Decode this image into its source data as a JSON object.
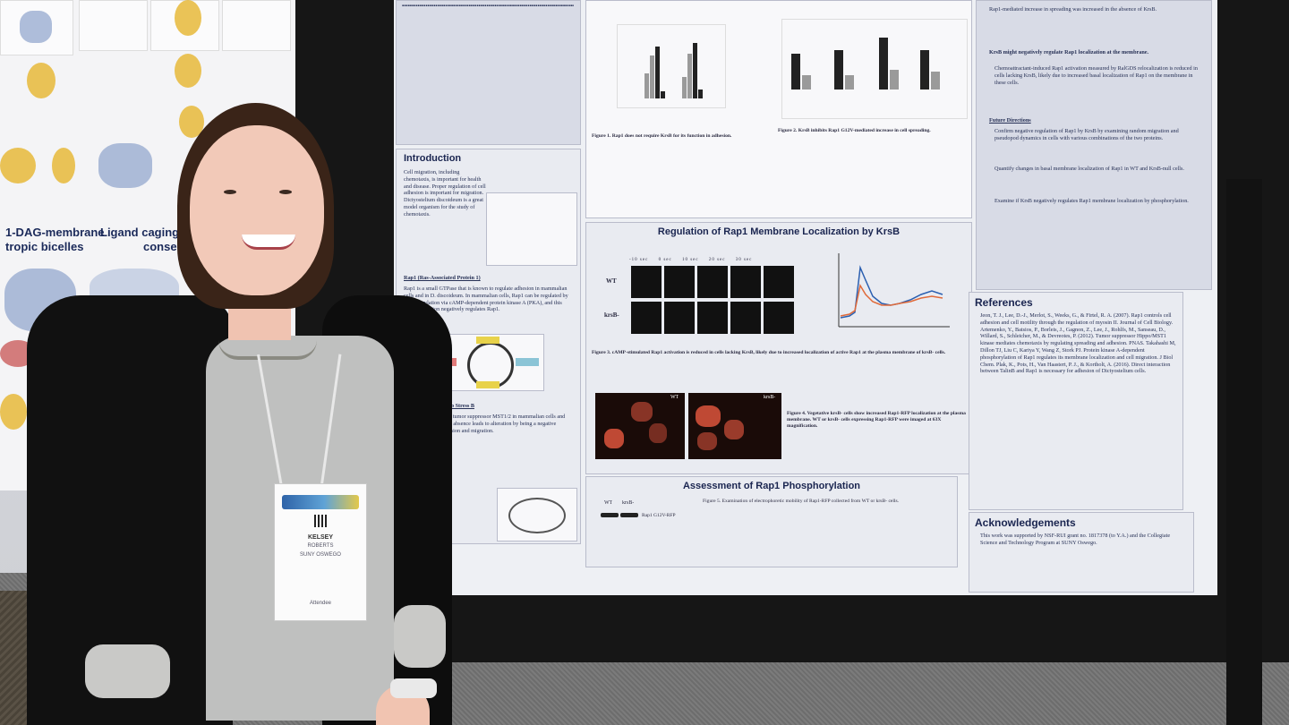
{
  "left_poster": {
    "header_a": "1-DAG-membrane",
    "header_b": "tropic bicelles",
    "header_c": "Ligand caging and lip",
    "header_d": "consensus C1"
  },
  "poster": {
    "fig1_caption": "Figure 1. Rap1 does not require KrsB for its function in adhesion.",
    "fig2_caption": "Figure 2. KrsB inhibits Rap1 G12V-mediated increase in cell spreading.",
    "introduction": {
      "title": "Introduction",
      "text": "Cell migration, including chemotaxis, is important for health and disease. Proper regulation of cell adhesion is important for migration. Dictyostelium discoideum is a great model organism for the study of chemotaxis.",
      "rap1_heading": "Rap1 (Ras-Associated Protein 1)",
      "rap1_text": "Rap1 is a small GTPase that is known to regulate adhesion in mammalian cells and in D. discoideum. In mammalian cells, Rap1 can be regulated by phosphorylation via cAMP-dependent protein kinase A (PKA), and this phosphorylation negatively regulates Rap1.",
      "krsb_heading": "Kinase Responsive to Stress B",
      "krsb_text": "KrsB is a homolog of tumor suppressor MST1/2 in mammalian cells and Drosophila Hippo. Its absence leads to alteration by being a negative regulator of cell adhesion and migration."
    },
    "middle_title": "Regulation of Rap1 Membrane Localization by KrsB",
    "time_labels": [
      "-10 sec",
      "0 sec",
      "10 sec",
      "20 sec",
      "30 sec"
    ],
    "row_labels": [
      "WT",
      "krsB-"
    ],
    "fig3_caption": "Figure 3. cAMP-stimulated Rap1 activation is reduced in cells lacking KrsB, likely due to increased localization of active Rap1 at the plasma membrane of krsB- cells.",
    "fluor_labels": [
      "WT",
      "krsB-"
    ],
    "fig4_caption": "Figure 4. Vegetative krsB- cells show increased Rap1-RFP localization at the plasma membrane. WT or krsB- cells expressing Rap1-RFP were imaged at 63X magnification.",
    "phospho_title": "Assessment of Rap1 Phosphorylation",
    "phospho_lane_labels": [
      "WT",
      "krsB-"
    ],
    "phospho_band_label": "Rap1 G12V-RFP",
    "fig5_caption": "Figure 5. Examination of electrophoretic mobility of Rap1-RFP collected from WT or krsB- cells.",
    "right_top_text": "Rap1-mediated increase in spreading was increased in the absence of KrsB.",
    "right_bold": "KrsB might negatively regulate Rap1 localization at the membrane.",
    "right_bullet": "Chemoattractant-induced Rap1 activation measured by RalGDS relocalization is reduced in cells lacking KrsB, likely due to increased basal localization of Rap1 on the membrane in these cells.",
    "future": {
      "title": "Future Directions",
      "items": [
        "Confirm negative regulation of Rap1 by KrsB by examining random migration and pseudopod dynamics in cells with various combinations of the two proteins.",
        "Quantify changes in basal membrane localization of Rap1 in WT and KrsB-null cells.",
        "Examine if KrsB negatively regulates Rap1 membrane localization by phosphorylation."
      ]
    },
    "references": {
      "title": "References",
      "text": "Jeon, T. J., Lee, D.-J., Merlot, S., Weeks, G., & Firtel, R. A. (2007). Rap1 controls cell adhesion and cell motility through the regulation of myosin II. Journal of Cell Biology. Artemenko, Y., Batsios, P., Borleis, J., Gagnon, Z., Lee, J., Rohlfs, M., Sanseau, D., Willard, S., Schleicher, M., & Devreotes, P. (2012). Tumor suppressor Hippo/MST1 kinase mediates chemotaxis by regulating spreading and adhesion. PNAS. Takahashi M, Dillon TJ, Liu C, Kariya Y, Wang Z, Stork PJ. Protein kinase A-dependent phosphorylation of Rap1 regulates its membrane localization and cell migration. J Biol Chem. Plak, K., Pots, H., Van Haastert, P. J., & Kortholt, A. (2016). Direct interaction between TalinB and Rap1 is necessary for adhesion of Dictyostelium cells."
    },
    "acknowledgements": {
      "title": "Acknowledgements",
      "text": "This work was supported by NSF-RUI grant no. 1817378 (to Y.A.) and the Collegiate Science and Technology Program at SUNY Oswego."
    }
  },
  "badge": {
    "name": "KELSEY",
    "surname": "ROBERTS",
    "org": "SUNY OSWEGO",
    "role": "Attendee"
  }
}
